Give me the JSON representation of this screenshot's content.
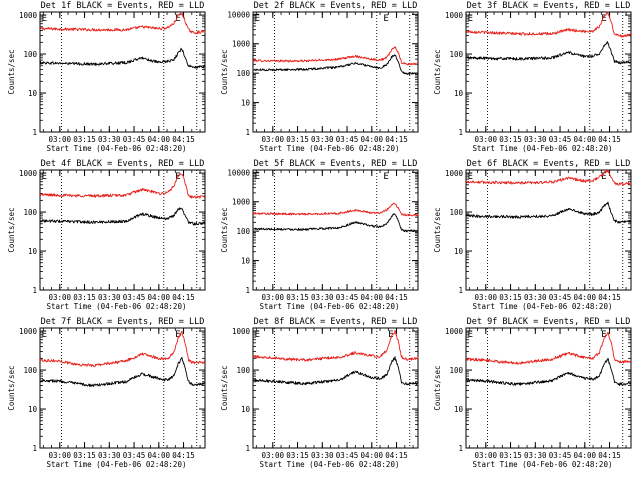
{
  "figure": {
    "x_axis_label": "Start Time (04-Feb-06 02:48:20)",
    "y_axis_label": "Counts/sec"
  },
  "chart_data": [
    {
      "type": "line",
      "title": "Det 1f BLACK = Events, RED = LLD",
      "xlabel": "Start Time (04-Feb-06 02:48:20)",
      "ylabel": "Counts/sec",
      "y_scale": "log",
      "ylim": [
        1,
        1200
      ],
      "y_ticks": [
        "1",
        "10",
        "100",
        "1000"
      ],
      "x_ticks": [
        "03:00",
        "03:15",
        "03:30",
        "03:45",
        "04:00",
        "04:15"
      ],
      "xlim": [
        "02:48",
        "04:28"
      ],
      "vertical_lines": [
        "03:01",
        "04:03",
        "04:23"
      ],
      "markers": [
        {
          "label": "E",
          "x": "02:49"
        },
        {
          "label": "E",
          "x": "04:10"
        }
      ],
      "series": [
        {
          "color": "#e8201a",
          "x": [
            "02:48",
            "03:00",
            "03:20",
            "03:40",
            "03:50",
            "04:00",
            "04:05",
            "04:09",
            "04:12",
            "04:14",
            "04:16",
            "04:18",
            "04:21",
            "04:28"
          ],
          "values": [
            450,
            440,
            420,
            420,
            500,
            450,
            470,
            600,
            1000,
            1100,
            700,
            420,
            350,
            380
          ]
        },
        {
          "color": "#000000",
          "x": [
            "02:48",
            "03:00",
            "03:20",
            "03:40",
            "03:50",
            "04:00",
            "04:05",
            "04:09",
            "04:12",
            "04:14",
            "04:16",
            "04:18",
            "04:21",
            "04:28"
          ],
          "values": [
            60,
            58,
            55,
            60,
            80,
            60,
            65,
            70,
            110,
            140,
            80,
            50,
            45,
            48
          ]
        }
      ]
    },
    {
      "type": "line",
      "title": "Det 2f BLACK = Events, RED = LLD",
      "xlabel": "Start Time (04-Feb-06 02:48:20)",
      "ylabel": "Counts/sec",
      "y_scale": "log",
      "ylim": [
        1,
        12000
      ],
      "y_ticks": [
        "1",
        "10",
        "100",
        "1000",
        "10000"
      ],
      "x_ticks": [
        "03:00",
        "03:15",
        "03:30",
        "03:45",
        "04:00",
        "04:15"
      ],
      "xlim": [
        "02:48",
        "04:28"
      ],
      "vertical_lines": [
        "03:01",
        "04:03",
        "04:23"
      ],
      "markers": [
        {
          "label": "E",
          "x": "02:49"
        },
        {
          "label": "E",
          "x": "04:07"
        }
      ],
      "series": [
        {
          "color": "#e8201a",
          "x": [
            "02:48",
            "03:00",
            "03:20",
            "03:40",
            "03:50",
            "04:00",
            "04:05",
            "04:09",
            "04:12",
            "04:14",
            "04:16",
            "04:18",
            "04:21",
            "04:28"
          ],
          "values": [
            270,
            260,
            260,
            300,
            380,
            300,
            280,
            330,
            600,
            800,
            500,
            230,
            200,
            210
          ]
        },
        {
          "color": "#000000",
          "x": [
            "02:48",
            "03:00",
            "03:20",
            "03:40",
            "03:50",
            "04:00",
            "04:05",
            "04:09",
            "04:12",
            "04:14",
            "04:16",
            "04:18",
            "04:21",
            "04:28"
          ],
          "values": [
            130,
            130,
            135,
            160,
            220,
            170,
            150,
            190,
            350,
            420,
            250,
            115,
            95,
            100
          ]
        }
      ]
    },
    {
      "type": "line",
      "title": "Det 3f BLACK = Events, RED = LLD",
      "xlabel": "Start Time (04-Feb-06 02:48:20)",
      "ylabel": "Counts/sec",
      "y_scale": "log",
      "ylim": [
        1,
        1200
      ],
      "y_ticks": [
        "1",
        "10",
        "100",
        "1000"
      ],
      "x_ticks": [
        "03:00",
        "03:15",
        "03:30",
        "03:45",
        "04:00",
        "04:15"
      ],
      "xlim": [
        "02:48",
        "04:28"
      ],
      "vertical_lines": [
        "03:01",
        "04:03",
        "04:23"
      ],
      "markers": [
        {
          "label": "E",
          "x": "02:49"
        },
        {
          "label": "E",
          "x": "04:10"
        }
      ],
      "series": [
        {
          "color": "#e8201a",
          "x": [
            "02:48",
            "03:00",
            "03:20",
            "03:40",
            "03:50",
            "04:00",
            "04:05",
            "04:09",
            "04:12",
            "04:14",
            "04:16",
            "04:18",
            "04:21",
            "04:28"
          ],
          "values": [
            380,
            360,
            330,
            330,
            420,
            380,
            390,
            520,
            1000,
            1150,
            650,
            330,
            290,
            310
          ]
        },
        {
          "color": "#000000",
          "x": [
            "02:48",
            "03:00",
            "03:20",
            "03:40",
            "03:50",
            "04:00",
            "04:05",
            "04:09",
            "04:12",
            "04:14",
            "04:16",
            "04:18",
            "04:21",
            "04:28"
          ],
          "values": [
            80,
            78,
            75,
            80,
            110,
            85,
            90,
            105,
            170,
            200,
            110,
            65,
            60,
            62
          ]
        }
      ]
    },
    {
      "type": "line",
      "title": "Det 4f BLACK = Events, RED = LLD",
      "xlabel": "Start Time (04-Feb-06 02:48:20)",
      "ylabel": "Counts/sec",
      "y_scale": "log",
      "ylim": [
        1,
        1200
      ],
      "y_ticks": [
        "1",
        "10",
        "100",
        "1000"
      ],
      "x_ticks": [
        "03:00",
        "03:15",
        "03:30",
        "03:45",
        "04:00",
        "04:15"
      ],
      "xlim": [
        "02:48",
        "04:28"
      ],
      "vertical_lines": [
        "03:01",
        "04:03",
        "04:23"
      ],
      "markers": [
        {
          "label": "E",
          "x": "02:49"
        },
        {
          "label": "E",
          "x": "04:10"
        }
      ],
      "series": [
        {
          "color": "#e8201a",
          "x": [
            "02:48",
            "03:00",
            "03:20",
            "03:40",
            "03:50",
            "04:00",
            "04:05",
            "04:09",
            "04:12",
            "04:14",
            "04:16",
            "04:18",
            "04:21",
            "04:28"
          ],
          "values": [
            280,
            270,
            260,
            270,
            380,
            300,
            310,
            450,
            850,
            1000,
            550,
            260,
            240,
            250
          ]
        },
        {
          "color": "#000000",
          "x": [
            "02:48",
            "03:00",
            "03:20",
            "03:40",
            "03:50",
            "04:00",
            "04:05",
            "04:09",
            "04:12",
            "04:14",
            "04:16",
            "04:18",
            "04:21",
            "04:28"
          ],
          "values": [
            60,
            58,
            55,
            58,
            90,
            70,
            68,
            80,
            120,
            130,
            80,
            55,
            50,
            52
          ]
        }
      ]
    },
    {
      "type": "line",
      "title": "Det 5f BLACK = Events, RED = LLD",
      "xlabel": "Start Time (04-Feb-06 02:48:20)",
      "ylabel": "Counts/sec",
      "y_scale": "log",
      "ylim": [
        1,
        12000
      ],
      "y_ticks": [
        "1",
        "10",
        "100",
        "1000",
        "10000"
      ],
      "x_ticks": [
        "03:00",
        "03:15",
        "03:30",
        "03:45",
        "04:00",
        "04:15"
      ],
      "xlim": [
        "02:48",
        "04:28"
      ],
      "vertical_lines": [
        "03:01",
        "04:03",
        "04:23"
      ],
      "markers": [
        {
          "label": "E",
          "x": "02:49"
        },
        {
          "label": "E",
          "x": "04:07"
        }
      ],
      "series": [
        {
          "color": "#e8201a",
          "x": [
            "02:48",
            "03:00",
            "03:20",
            "03:40",
            "03:50",
            "04:00",
            "04:05",
            "04:09",
            "04:12",
            "04:14",
            "04:16",
            "04:18",
            "04:21",
            "04:28"
          ],
          "values": [
            400,
            390,
            380,
            400,
            520,
            420,
            420,
            520,
            800,
            900,
            600,
            380,
            350,
            360
          ]
        },
        {
          "color": "#000000",
          "x": [
            "02:48",
            "03:00",
            "03:20",
            "03:40",
            "03:50",
            "04:00",
            "04:05",
            "04:09",
            "04:12",
            "04:14",
            "04:16",
            "04:18",
            "04:21",
            "04:28"
          ],
          "values": [
            120,
            118,
            115,
            130,
            200,
            150,
            140,
            170,
            320,
            400,
            230,
            110,
            100,
            105
          ]
        }
      ]
    },
    {
      "type": "line",
      "title": "Det 6f BLACK = Events, RED = LLD",
      "xlabel": "Start Time (04-Feb-06 02:48:20)",
      "ylabel": "Counts/sec",
      "y_scale": "log",
      "ylim": [
        1,
        1200
      ],
      "y_ticks": [
        "1",
        "10",
        "100",
        "1000"
      ],
      "x_ticks": [
        "03:00",
        "03:15",
        "03:30",
        "03:45",
        "04:00",
        "04:15"
      ],
      "xlim": [
        "02:48",
        "04:28"
      ],
      "vertical_lines": [
        "03:01",
        "04:03",
        "04:23"
      ],
      "markers": [
        {
          "label": "E",
          "x": "02:49"
        },
        {
          "label": "E",
          "x": "04:10"
        }
      ],
      "series": [
        {
          "color": "#e8201a",
          "x": [
            "02:48",
            "03:00",
            "03:20",
            "03:40",
            "03:50",
            "04:00",
            "04:05",
            "04:09",
            "04:12",
            "04:14",
            "04:16",
            "04:18",
            "04:21",
            "04:28"
          ],
          "values": [
            600,
            580,
            560,
            580,
            750,
            620,
            640,
            800,
            1050,
            1150,
            750,
            550,
            520,
            540
          ]
        },
        {
          "color": "#000000",
          "x": [
            "02:48",
            "03:00",
            "03:20",
            "03:40",
            "03:50",
            "04:00",
            "04:05",
            "04:09",
            "04:12",
            "04:14",
            "04:16",
            "04:18",
            "04:21",
            "04:28"
          ],
          "values": [
            80,
            78,
            75,
            80,
            120,
            90,
            88,
            100,
            150,
            170,
            100,
            60,
            55,
            58
          ]
        }
      ]
    },
    {
      "type": "line",
      "title": "Det 7f BLACK = Events, RED = LLD",
      "xlabel": "Start Time (04-Feb-06 02:48:20)",
      "ylabel": "Counts/sec",
      "y_scale": "log",
      "ylim": [
        1,
        1200
      ],
      "y_ticks": [
        "1",
        "10",
        "100",
        "1000"
      ],
      "x_ticks": [
        "03:00",
        "03:15",
        "03:30",
        "03:45",
        "04:00",
        "04:15"
      ],
      "xlim": [
        "02:48",
        "04:28"
      ],
      "vertical_lines": [
        "03:01",
        "04:03",
        "04:23"
      ],
      "markers": [
        {
          "label": "E",
          "x": "02:49"
        },
        {
          "label": "E",
          "x": "04:10"
        }
      ],
      "series": [
        {
          "color": "#e8201a",
          "x": [
            "02:48",
            "03:00",
            "03:10",
            "03:20",
            "03:30",
            "03:40",
            "03:50",
            "04:00",
            "04:05",
            "04:09",
            "04:12",
            "04:14",
            "04:16",
            "04:18",
            "04:21",
            "04:28"
          ],
          "values": [
            180,
            170,
            140,
            130,
            150,
            170,
            260,
            200,
            190,
            280,
            700,
            950,
            500,
            180,
            150,
            160
          ]
        },
        {
          "color": "#000000",
          "x": [
            "02:48",
            "03:00",
            "03:10",
            "03:20",
            "03:30",
            "03:40",
            "03:50",
            "04:00",
            "04:05",
            "04:09",
            "04:12",
            "04:14",
            "04:16",
            "04:18",
            "04:21",
            "04:28"
          ],
          "values": [
            55,
            52,
            45,
            40,
            45,
            50,
            80,
            60,
            55,
            70,
            150,
            200,
            110,
            50,
            42,
            45
          ]
        }
      ]
    },
    {
      "type": "line",
      "title": "Det 8f BLACK = Events, RED = LLD",
      "xlabel": "Start Time (04-Feb-06 02:48:20)",
      "ylabel": "Counts/sec",
      "y_scale": "log",
      "ylim": [
        1,
        1200
      ],
      "y_ticks": [
        "1",
        "10",
        "100",
        "1000"
      ],
      "x_ticks": [
        "03:00",
        "03:15",
        "03:30",
        "03:45",
        "04:00",
        "04:15"
      ],
      "xlim": [
        "02:48",
        "04:28"
      ],
      "vertical_lines": [
        "03:01",
        "04:03",
        "04:23"
      ],
      "markers": [
        {
          "label": "E",
          "x": "02:49"
        },
        {
          "label": "E",
          "x": "04:10"
        }
      ],
      "series": [
        {
          "color": "#e8201a",
          "x": [
            "02:48",
            "03:00",
            "03:10",
            "03:20",
            "03:30",
            "03:40",
            "03:50",
            "04:00",
            "04:05",
            "04:09",
            "04:12",
            "04:14",
            "04:16",
            "04:18",
            "04:21",
            "04:28"
          ],
          "values": [
            220,
            210,
            190,
            180,
            200,
            210,
            280,
            230,
            220,
            320,
            750,
            1000,
            550,
            220,
            190,
            200
          ]
        },
        {
          "color": "#000000",
          "x": [
            "02:48",
            "03:00",
            "03:10",
            "03:20",
            "03:30",
            "03:40",
            "03:50",
            "04:00",
            "04:05",
            "04:09",
            "04:12",
            "04:14",
            "04:16",
            "04:18",
            "04:21",
            "04:28"
          ],
          "values": [
            55,
            52,
            48,
            45,
            50,
            55,
            90,
            65,
            60,
            75,
            160,
            210,
            120,
            50,
            44,
            46
          ]
        }
      ]
    },
    {
      "type": "line",
      "title": "Det 9f BLACK = Events, RED = LLD",
      "xlabel": "Start Time (04-Feb-06 02:48:20)",
      "ylabel": "Counts/sec",
      "y_scale": "log",
      "ylim": [
        1,
        1200
      ],
      "y_ticks": [
        "1",
        "10",
        "100",
        "1000"
      ],
      "x_ticks": [
        "03:00",
        "03:15",
        "03:30",
        "03:45",
        "04:00",
        "04:15"
      ],
      "xlim": [
        "02:48",
        "04:28"
      ],
      "vertical_lines": [
        "03:01",
        "04:03",
        "04:23"
      ],
      "markers": [
        {
          "label": "E",
          "x": "02:49"
        },
        {
          "label": "E",
          "x": "04:10"
        }
      ],
      "series": [
        {
          "color": "#e8201a",
          "x": [
            "02:48",
            "03:00",
            "03:10",
            "03:20",
            "03:30",
            "03:40",
            "03:50",
            "04:00",
            "04:05",
            "04:09",
            "04:12",
            "04:14",
            "04:16",
            "04:18",
            "04:21",
            "04:28"
          ],
          "values": [
            190,
            180,
            160,
            150,
            170,
            190,
            270,
            210,
            200,
            290,
            700,
            900,
            500,
            190,
            160,
            170
          ]
        },
        {
          "color": "#000000",
          "x": [
            "02:48",
            "03:00",
            "03:10",
            "03:20",
            "03:30",
            "03:40",
            "03:50",
            "04:00",
            "04:05",
            "04:09",
            "04:12",
            "04:14",
            "04:16",
            "04:18",
            "04:21",
            "04:28"
          ],
          "values": [
            55,
            52,
            47,
            43,
            48,
            53,
            85,
            62,
            58,
            72,
            150,
            190,
            110,
            50,
            43,
            46
          ]
        }
      ]
    }
  ]
}
